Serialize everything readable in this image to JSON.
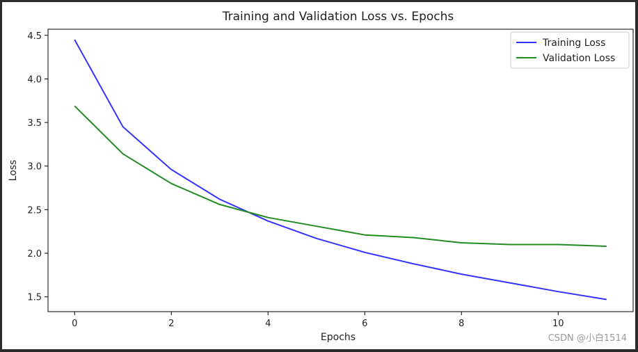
{
  "chart_data": {
    "type": "line",
    "title": "Training and Validation Loss vs. Epochs",
    "xlabel": "Epochs",
    "ylabel": "Loss",
    "xlim": [
      -0.55,
      11.55
    ],
    "ylim": [
      1.33,
      4.57
    ],
    "xticks": [
      0,
      2,
      4,
      6,
      8,
      10
    ],
    "yticks": [
      1.5,
      2.0,
      2.5,
      3.0,
      3.5,
      4.0,
      4.5
    ],
    "legend_position": "top-right",
    "x": [
      0,
      1,
      2,
      3,
      4,
      5,
      6,
      7,
      8,
      9,
      10,
      11
    ],
    "series": [
      {
        "name": "Training Loss",
        "color": "#3333ff",
        "values": [
          4.45,
          3.45,
          2.96,
          2.62,
          2.37,
          2.17,
          2.01,
          1.88,
          1.76,
          1.66,
          1.56,
          1.47
        ]
      },
      {
        "name": "Validation Loss",
        "color": "#228b22",
        "values": [
          3.69,
          3.14,
          2.8,
          2.56,
          2.41,
          2.31,
          2.21,
          2.18,
          2.12,
          2.1,
          2.1,
          2.08
        ]
      }
    ]
  },
  "watermark": "CSDN @小白1514"
}
